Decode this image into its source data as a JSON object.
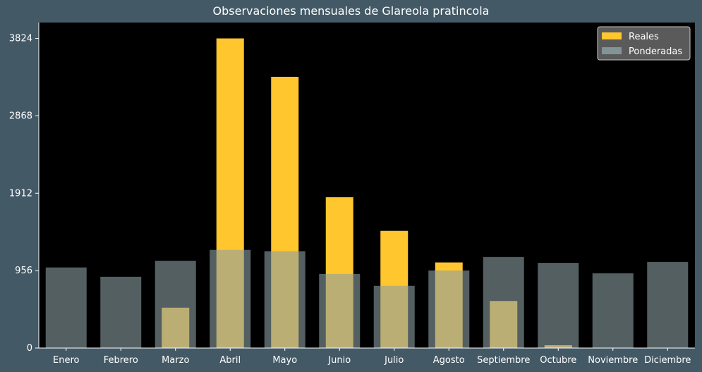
{
  "chart_data": {
    "type": "bar",
    "title": "Observaciones mensuales de Glareola pratincola",
    "xlabel": "",
    "ylabel": "",
    "categories": [
      "Enero",
      "Febrero",
      "Marzo",
      "Abril",
      "Mayo",
      "Junio",
      "Julio",
      "Agosto",
      "Septiembre",
      "Octubre",
      "Noviembre",
      "Diciembre"
    ],
    "series": [
      {
        "name": "Reales",
        "color": "#ffc62d",
        "values": [
          0,
          0,
          498,
          3824,
          3350,
          1863,
          1447,
          1057,
          581,
          35,
          0,
          0
        ]
      },
      {
        "name": "Ponderadas",
        "color": "#8c9ea3",
        "values": [
          995,
          880,
          1078,
          1212,
          1196,
          915,
          768,
          958,
          1124,
          1052,
          923,
          1062
        ]
      }
    ],
    "yticks": [
      0,
      956,
      1912,
      2868,
      3824
    ],
    "ylim": [
      0,
      4020
    ],
    "grid": false,
    "legend_position": "top-right",
    "plot_background": "#000000",
    "figure_background": "#435966"
  }
}
